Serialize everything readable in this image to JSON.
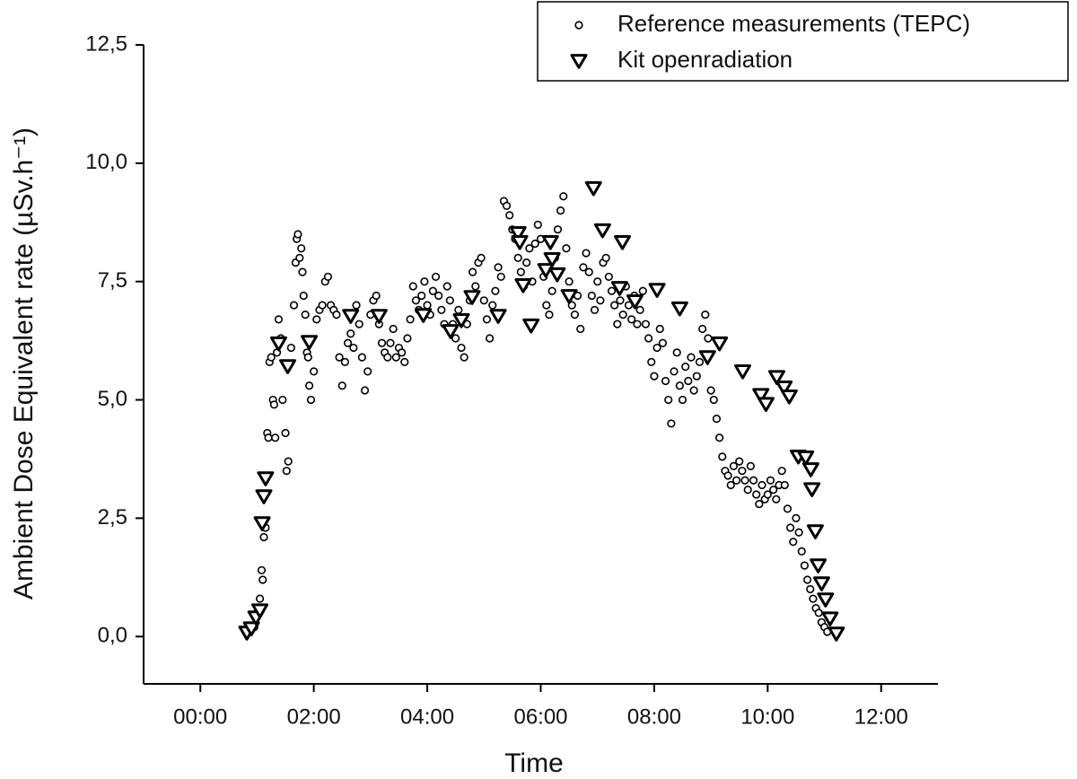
{
  "chart_data": {
    "type": "scatter",
    "x_label": "Time",
    "y_label": "Ambient Dose Equivalent rate (µSv.h⁻¹)",
    "xlim": [
      -1,
      13
    ],
    "ylim": [
      -1,
      12.5
    ],
    "xticks": [
      {
        "value": 0,
        "label": "00:00"
      },
      {
        "value": 2,
        "label": "02:00"
      },
      {
        "value": 4,
        "label": "04:00"
      },
      {
        "value": 6,
        "label": "06:00"
      },
      {
        "value": 8,
        "label": "08:00"
      },
      {
        "value": 10,
        "label": "10:00"
      },
      {
        "value": 12,
        "label": "12:00"
      }
    ],
    "yticks": [
      {
        "value": 0,
        "label": "0,0"
      },
      {
        "value": 2.5,
        "label": "2,5"
      },
      {
        "value": 5,
        "label": "5,0"
      },
      {
        "value": 7.5,
        "label": "7,5"
      },
      {
        "value": 10,
        "label": "10,0"
      },
      {
        "value": 12.5,
        "label": "12,5"
      }
    ],
    "grid": false,
    "legend": "top-right",
    "series": [
      {
        "name": "Reference measurements (TEPC)",
        "color": "#000000",
        "marker": "circle",
        "x": [
          0.95,
          1.0,
          1.05,
          1.08,
          1.1,
          1.12,
          1.15,
          1.18,
          1.2,
          1.22,
          1.25,
          1.28,
          1.3,
          1.32,
          1.35,
          1.38,
          1.42,
          1.45,
          1.5,
          1.52,
          1.55,
          1.6,
          1.65,
          1.68,
          1.7,
          1.72,
          1.75,
          1.78,
          1.8,
          1.82,
          1.85,
          1.88,
          1.9,
          1.92,
          1.95,
          2.0,
          2.05,
          2.1,
          2.15,
          2.2,
          2.25,
          2.3,
          2.35,
          2.4,
          2.45,
          2.5,
          2.55,
          2.6,
          2.65,
          2.7,
          2.75,
          2.8,
          2.85,
          2.9,
          2.95,
          3.0,
          3.05,
          3.1,
          3.15,
          3.2,
          3.25,
          3.3,
          3.35,
          3.4,
          3.45,
          3.5,
          3.55,
          3.6,
          3.65,
          3.7,
          3.75,
          3.8,
          3.85,
          3.9,
          3.95,
          4.0,
          4.05,
          4.1,
          4.15,
          4.2,
          4.25,
          4.3,
          4.35,
          4.4,
          4.45,
          4.5,
          4.55,
          4.6,
          4.65,
          4.7,
          4.75,
          4.8,
          4.85,
          4.9,
          4.95,
          5.0,
          5.05,
          5.1,
          5.15,
          5.2,
          5.25,
          5.3,
          5.35,
          5.4,
          5.45,
          5.5,
          5.55,
          5.6,
          5.65,
          5.7,
          5.75,
          5.8,
          5.85,
          5.9,
          5.95,
          6.0,
          6.05,
          6.1,
          6.15,
          6.2,
          6.25,
          6.3,
          6.35,
          6.4,
          6.45,
          6.5,
          6.55,
          6.6,
          6.65,
          6.7,
          6.75,
          6.8,
          6.85,
          6.9,
          6.95,
          7.0,
          7.05,
          7.1,
          7.15,
          7.2,
          7.25,
          7.3,
          7.35,
          7.4,
          7.45,
          7.5,
          7.55,
          7.6,
          7.65,
          7.7,
          7.75,
          7.8,
          7.85,
          7.9,
          7.95,
          8.0,
          8.05,
          8.1,
          8.15,
          8.2,
          8.25,
          8.3,
          8.35,
          8.4,
          8.45,
          8.5,
          8.55,
          8.6,
          8.65,
          8.7,
          8.75,
          8.8,
          8.85,
          8.9,
          8.95,
          9.0,
          9.05,
          9.1,
          9.15,
          9.2,
          9.25,
          9.3,
          9.35,
          9.4,
          9.45,
          9.5,
          9.55,
          9.6,
          9.65,
          9.7,
          9.75,
          9.8,
          9.85,
          9.9,
          9.95,
          10.0,
          10.05,
          10.1,
          10.15,
          10.2,
          10.25,
          10.3,
          10.35,
          10.4,
          10.45,
          10.5,
          10.55,
          10.6,
          10.65,
          10.7,
          10.75,
          10.8,
          10.85,
          10.9,
          10.95,
          11.0,
          11.05
        ],
        "values": [
          0.2,
          0.5,
          0.8,
          1.4,
          1.2,
          2.1,
          2.3,
          4.3,
          4.2,
          5.8,
          5.9,
          5.0,
          4.9,
          4.2,
          6.0,
          6.7,
          6.3,
          5.0,
          4.3,
          3.5,
          3.7,
          6.1,
          7.0,
          7.9,
          8.4,
          8.5,
          8.0,
          8.2,
          7.7,
          7.2,
          6.8,
          6.0,
          5.9,
          5.3,
          5.0,
          5.6,
          6.7,
          6.9,
          7.0,
          7.5,
          7.6,
          7.0,
          6.9,
          6.8,
          5.9,
          5.3,
          5.8,
          6.2,
          6.4,
          6.1,
          7.0,
          6.6,
          5.9,
          5.2,
          5.6,
          6.8,
          7.1,
          7.2,
          6.6,
          6.2,
          6.0,
          5.9,
          6.2,
          6.5,
          5.9,
          6.1,
          6.0,
          5.8,
          6.3,
          6.7,
          7.4,
          7.1,
          6.9,
          7.2,
          7.5,
          7.0,
          6.8,
          7.3,
          7.6,
          7.2,
          6.9,
          6.6,
          7.4,
          7.1,
          6.6,
          6.3,
          6.9,
          6.1,
          5.9,
          6.6,
          7.1,
          7.7,
          7.4,
          7.9,
          8.0,
          7.1,
          6.7,
          6.3,
          7.0,
          7.3,
          7.8,
          7.6,
          9.2,
          9.1,
          8.9,
          8.6,
          8.4,
          8.0,
          7.7,
          7.4,
          7.9,
          8.2,
          7.5,
          8.3,
          8.7,
          8.4,
          7.6,
          7.0,
          6.8,
          7.3,
          8.0,
          8.6,
          9.0,
          9.3,
          8.2,
          7.5,
          7.0,
          6.8,
          7.2,
          6.5,
          7.8,
          8.1,
          7.7,
          7.2,
          6.9,
          7.5,
          7.1,
          7.9,
          8.0,
          7.6,
          7.3,
          7.0,
          6.6,
          7.1,
          6.8,
          7.4,
          7.0,
          6.7,
          7.2,
          6.6,
          6.9,
          7.3,
          6.6,
          6.3,
          5.8,
          5.5,
          6.1,
          6.5,
          6.2,
          5.4,
          5.0,
          4.5,
          5.6,
          6.0,
          5.3,
          5.0,
          5.7,
          5.4,
          5.9,
          5.2,
          5.5,
          5.8,
          6.5,
          6.8,
          6.3,
          5.2,
          5.0,
          4.6,
          4.2,
          3.8,
          3.5,
          3.4,
          3.2,
          3.6,
          3.3,
          3.7,
          3.5,
          3.3,
          3.1,
          3.6,
          3.3,
          3.0,
          2.8,
          3.2,
          2.9,
          3.0,
          3.3,
          3.1,
          2.9,
          3.2,
          3.5,
          3.2,
          2.7,
          2.3,
          2.0,
          2.5,
          2.2,
          1.8,
          1.5,
          1.2,
          1.0,
          0.8,
          0.6,
          0.5,
          0.3,
          0.2,
          0.1
        ]
      },
      {
        "name": "Kit openradiation",
        "color": "#000000",
        "marker": "triangle-down",
        "x": [
          0.82,
          0.9,
          0.98,
          1.05,
          1.09,
          1.12,
          1.15,
          1.38,
          1.54,
          1.92,
          2.65,
          3.15,
          3.93,
          4.41,
          4.6,
          4.79,
          5.25,
          5.6,
          5.63,
          5.69,
          5.83,
          6.09,
          6.17,
          6.2,
          6.29,
          6.5,
          6.93,
          7.09,
          7.39,
          7.44,
          7.66,
          8.05,
          8.45,
          8.94,
          9.15,
          9.56,
          9.88,
          9.97,
          10.16,
          10.29,
          10.38,
          10.54,
          10.67,
          10.76,
          10.78,
          10.84,
          10.89,
          10.95,
          11.02,
          11.1,
          11.21
        ],
        "values": [
          0.08,
          0.17,
          0.4,
          0.55,
          2.39,
          2.96,
          3.34,
          6.19,
          5.71,
          6.22,
          6.77,
          6.77,
          6.79,
          6.45,
          6.68,
          7.17,
          6.77,
          8.52,
          8.33,
          7.42,
          6.57,
          7.74,
          8.33,
          7.97,
          7.65,
          7.19,
          9.47,
          8.58,
          7.36,
          8.33,
          7.08,
          7.32,
          6.93,
          5.9,
          6.19,
          5.6,
          5.1,
          4.91,
          5.48,
          5.26,
          5.07,
          3.8,
          3.78,
          3.53,
          3.11,
          2.22,
          1.5,
          1.12,
          0.78,
          0.38,
          0.06
        ]
      }
    ]
  }
}
